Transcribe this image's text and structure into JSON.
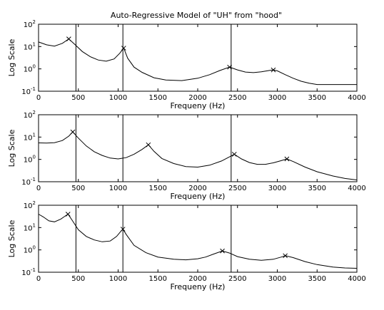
{
  "figure_title": "Auto-Regressive Model of \"UH\" from \"hood\"",
  "chart_data": [
    {
      "type": "line",
      "xlabel": "Frequeny (Hz)",
      "ylabel": "Log Scale",
      "yscale": "log",
      "xlim": [
        0,
        4000
      ],
      "ylim": [
        0.1,
        100
      ],
      "xticks": [
        0,
        500,
        1000,
        1500,
        2000,
        2500,
        3000,
        3500,
        4000
      ],
      "yticks": [
        {
          "base": "10",
          "exp": "-1"
        },
        {
          "base": "10",
          "exp": "0"
        },
        {
          "base": "10",
          "exp": "1"
        },
        {
          "base": "10",
          "exp": "2"
        }
      ],
      "vertical_lines": [
        470,
        1060,
        2420
      ],
      "peaks": [
        [
          380,
          22
        ],
        [
          1070,
          8.5
        ],
        [
          2400,
          1.2
        ],
        [
          2950,
          0.9
        ]
      ],
      "series": [
        {
          "x": [
            0,
            100,
            200,
            300,
            380,
            450,
            550,
            650,
            750,
            850,
            950,
            1020,
            1070,
            1120,
            1200,
            1300,
            1450,
            1600,
            1800,
            2000,
            2150,
            2280,
            2400,
            2500,
            2600,
            2700,
            2800,
            2900,
            2950,
            3000,
            3100,
            3200,
            3300,
            3400,
            3500,
            3700,
            4000
          ],
          "y": [
            16,
            12,
            10.5,
            14,
            22,
            13,
            6,
            3.5,
            2.5,
            2.2,
            2.8,
            5,
            8.5,
            3,
            1.2,
            0.7,
            0.4,
            0.32,
            0.3,
            0.38,
            0.55,
            0.85,
            1.2,
            0.9,
            0.72,
            0.68,
            0.74,
            0.85,
            0.9,
            0.82,
            0.55,
            0.38,
            0.28,
            0.23,
            0.2,
            0.2,
            0.2
          ]
        }
      ]
    },
    {
      "type": "line",
      "xlabel": "Frequeny (Hz)",
      "ylabel": "Log Scale",
      "yscale": "log",
      "xlim": [
        0,
        4000
      ],
      "ylim": [
        0.1,
        100
      ],
      "xticks": [
        0,
        500,
        1000,
        1500,
        2000,
        2500,
        3000,
        3500,
        4000
      ],
      "yticks": [
        {
          "base": "10",
          "exp": "-1"
        },
        {
          "base": "10",
          "exp": "0"
        },
        {
          "base": "10",
          "exp": "1"
        },
        {
          "base": "10",
          "exp": "2"
        }
      ],
      "vertical_lines": [
        470,
        1060,
        2420
      ],
      "peaks": [
        [
          430,
          17
        ],
        [
          1380,
          4.5
        ],
        [
          2460,
          1.7
        ],
        [
          3120,
          1.05
        ]
      ],
      "series": [
        {
          "x": [
            0,
            100,
            200,
            300,
            380,
            430,
            500,
            600,
            700,
            800,
            900,
            1000,
            1100,
            1200,
            1300,
            1380,
            1450,
            1550,
            1700,
            1850,
            2000,
            2150,
            2300,
            2400,
            2460,
            2550,
            2650,
            2750,
            2850,
            2950,
            3050,
            3120,
            3200,
            3350,
            3500,
            3700,
            3850,
            4000
          ],
          "y": [
            5.5,
            5.4,
            5.6,
            7,
            11,
            17,
            9,
            4,
            2.2,
            1.5,
            1.15,
            1.05,
            1.2,
            1.7,
            2.8,
            4.5,
            2.3,
            1.1,
            0.65,
            0.48,
            0.45,
            0.55,
            0.85,
            1.3,
            1.7,
            1.05,
            0.72,
            0.6,
            0.6,
            0.7,
            0.88,
            1.05,
            0.8,
            0.45,
            0.28,
            0.18,
            0.14,
            0.12
          ]
        }
      ]
    },
    {
      "type": "line",
      "xlabel": "Frequeny (Hz)",
      "ylabel": "Log Scale",
      "yscale": "log",
      "xlim": [
        0,
        4000
      ],
      "ylim": [
        0.1,
        100
      ],
      "xticks": [
        0,
        500,
        1000,
        1500,
        2000,
        2500,
        3000,
        3500,
        4000
      ],
      "yticks": [
        {
          "base": "10",
          "exp": "-1"
        },
        {
          "base": "10",
          "exp": "0"
        },
        {
          "base": "10",
          "exp": "1"
        },
        {
          "base": "10",
          "exp": "2"
        }
      ],
      "vertical_lines": [
        470,
        1060,
        2420
      ],
      "peaks": [
        [
          370,
          40
        ],
        [
          1060,
          8.5
        ],
        [
          2310,
          0.9
        ],
        [
          3100,
          0.55
        ]
      ],
      "series": [
        {
          "x": [
            0,
            60,
            130,
            200,
            280,
            330,
            370,
            420,
            500,
            600,
            700,
            800,
            900,
            980,
            1030,
            1060,
            1100,
            1200,
            1350,
            1500,
            1700,
            1850,
            2000,
            2100,
            2200,
            2310,
            2400,
            2500,
            2650,
            2800,
            2950,
            3050,
            3100,
            3200,
            3350,
            3500,
            3700,
            3850,
            4000
          ],
          "y": [
            40,
            30,
            20,
            18,
            24,
            32,
            40,
            22,
            8,
            4,
            2.8,
            2.3,
            2.5,
            4,
            6.5,
            8.5,
            5,
            1.6,
            0.75,
            0.48,
            0.38,
            0.36,
            0.4,
            0.48,
            0.65,
            0.9,
            0.72,
            0.5,
            0.38,
            0.34,
            0.38,
            0.48,
            0.55,
            0.45,
            0.3,
            0.22,
            0.17,
            0.155,
            0.15
          ]
        }
      ]
    }
  ]
}
